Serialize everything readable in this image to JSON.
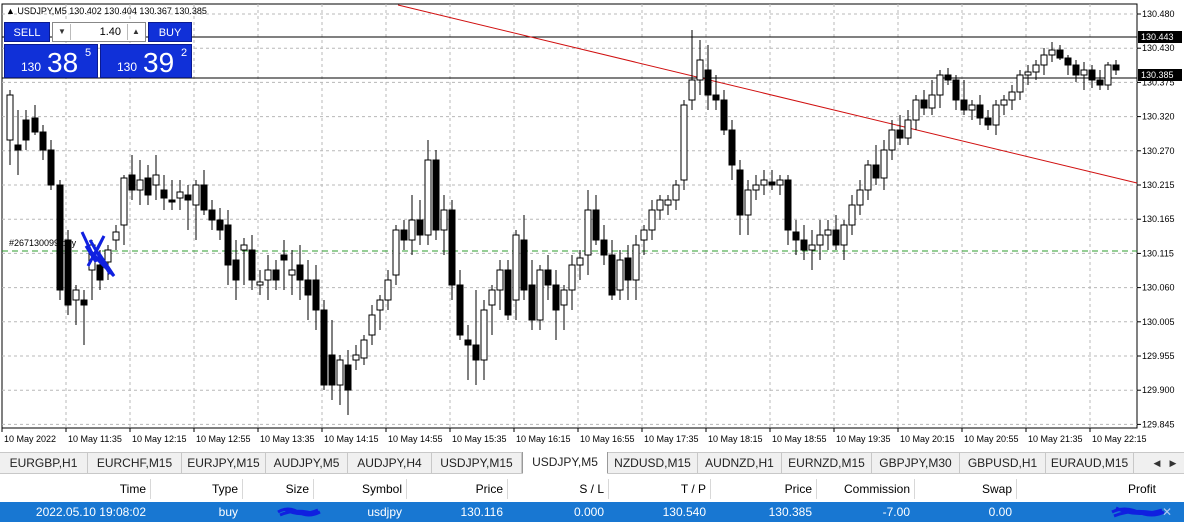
{
  "chart": {
    "title": "USDJPY,M5  130.402 130.404 130.367 130.385",
    "order_label": "#267130099 buy",
    "price_labels": [
      "130.480",
      "130.430",
      "130.375",
      "130.320",
      "130.270",
      "130.215",
      "130.165",
      "130.115",
      "130.060",
      "130.005",
      "129.955",
      "129.900",
      "129.845"
    ],
    "highlight_prices": [
      "130.443",
      "130.385"
    ],
    "time_labels": [
      "10 May 2022",
      "10 May 11:35",
      "10 May 12:15",
      "10 May 12:55",
      "10 May 13:35",
      "10 May 14:15",
      "10 May 14:55",
      "10 May 15:35",
      "10 May 16:15",
      "10 May 16:55",
      "10 May 17:35",
      "10 May 18:15",
      "10 May 18:55",
      "10 May 19:35",
      "10 May 20:15",
      "10 May 20:55",
      "10 May 21:35",
      "10 May 22:15"
    ],
    "colors": {
      "trendline": "#d01010",
      "order_line": "#2e9e2e",
      "grid": "#b8b8b8",
      "candle": "#000000",
      "scribble": "#1020e0"
    }
  },
  "trade_panel": {
    "sell_label": "SELL",
    "buy_label": "BUY",
    "lot": "1.40",
    "sell_price_prefix": "130",
    "sell_price_big": "38",
    "sell_price_sup": "5",
    "buy_price_prefix": "130",
    "buy_price_big": "39",
    "buy_price_sup": "2"
  },
  "tabs": [
    "EURGBP,H1",
    "EURCHF,M15",
    "EURJPY,M15",
    "AUDJPY,M5",
    "AUDJPY,H4",
    "USDJPY,M15",
    "USDJPY,M5",
    "NZDUSD,M15",
    "AUDNZD,H1",
    "EURNZD,M15",
    "GBPJPY,M30",
    "GBPUSD,H1",
    "EURAUD,M15"
  ],
  "active_tab": "USDJPY,M5",
  "positions": {
    "headers": {
      "time": "Time",
      "type": "Type",
      "size": "Size",
      "symbol": "Symbol",
      "price": "Price",
      "sl": "S / L",
      "tp": "T / P",
      "price2": "Price",
      "commission": "Commission",
      "swap": "Swap",
      "profit": "Profit"
    },
    "row": {
      "time": "2022.05.10 19:08:02",
      "type": "buy",
      "size": "",
      "symbol": "usdjpy",
      "price": "130.116",
      "sl": "0.000",
      "tp": "130.540",
      "price2": "130.385",
      "commission": "-7.00",
      "swap": "0.00",
      "profit": ""
    }
  }
}
